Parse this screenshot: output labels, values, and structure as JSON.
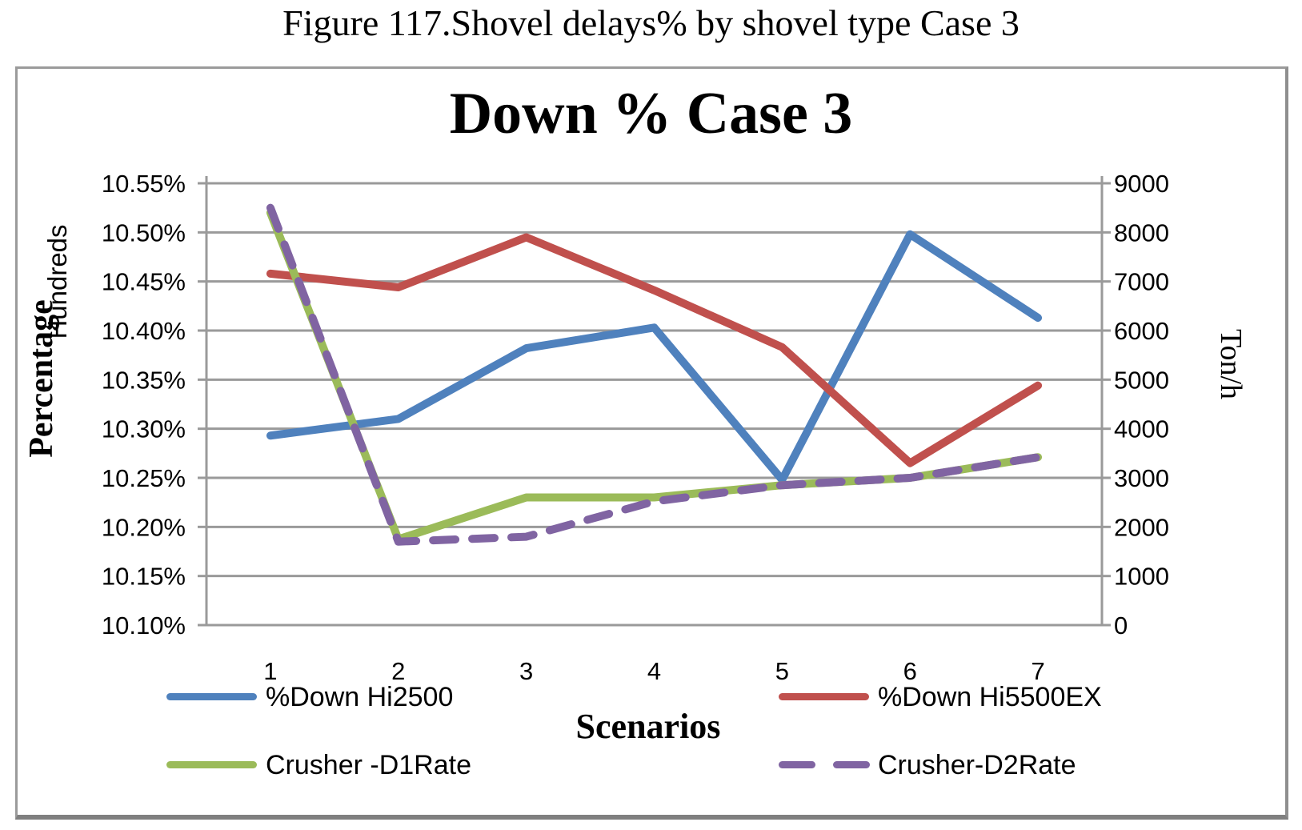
{
  "caption": "Figure 117.Shovel delays% by shovel type Case 3",
  "chart": {
    "title": "Down % Case 3",
    "x_axis_title": "Scenarios",
    "left_axis_title": "Percentage",
    "left_axis_units_label": "Hundreds",
    "right_axis_title": "Ton/h"
  },
  "colors": {
    "series_blue": "#4F81BD",
    "series_red": "#C0504D",
    "series_green": "#9BBB59",
    "series_purple": "#8064A2",
    "gridline": "#9a9a9a",
    "axis": "#9a9a9a",
    "text": "#000000",
    "frame_border": "#9b9b9b"
  },
  "chart_data": {
    "type": "line",
    "title": "Down % Case 3",
    "xlabel": "Scenarios",
    "categories": [
      "1",
      "2",
      "3",
      "4",
      "5",
      "6",
      "7"
    ],
    "left_axis": {
      "label": "Percentage (Hundreds)",
      "min": 10.1,
      "max": 10.55,
      "ticks": [
        "10.55%",
        "10.50%",
        "10.45%",
        "10.40%",
        "10.35%",
        "10.30%",
        "10.25%",
        "10.20%",
        "10.15%",
        "10.10%"
      ]
    },
    "right_axis": {
      "label": "Ton/h",
      "min": 0,
      "max": 9000,
      "ticks": [
        "9000",
        "8000",
        "7000",
        "6000",
        "5000",
        "4000",
        "3000",
        "2000",
        "1000",
        "0"
      ]
    },
    "grid": true,
    "legend_position": "bottom",
    "series": [
      {
        "name": "%Down Hi2500",
        "axis": "left",
        "color": "#4F81BD",
        "dash": false,
        "values": [
          10.293,
          10.31,
          10.382,
          10.403,
          10.248,
          10.498,
          10.413
        ]
      },
      {
        "name": "%Down Hi5500EX",
        "axis": "left",
        "color": "#C0504D",
        "dash": false,
        "values": [
          10.458,
          10.444,
          10.495,
          10.441,
          10.383,
          10.265,
          10.344
        ]
      },
      {
        "name": "Crusher -D1Rate",
        "axis": "right",
        "color": "#9BBB59",
        "dash": false,
        "values": [
          8400,
          1750,
          2600,
          2600,
          2850,
          3000,
          3420
        ]
      },
      {
        "name": "Crusher-D2Rate",
        "axis": "right",
        "color": "#8064A2",
        "dash": true,
        "values": [
          8500,
          1700,
          1800,
          2520,
          2850,
          3000,
          3420
        ]
      }
    ]
  }
}
